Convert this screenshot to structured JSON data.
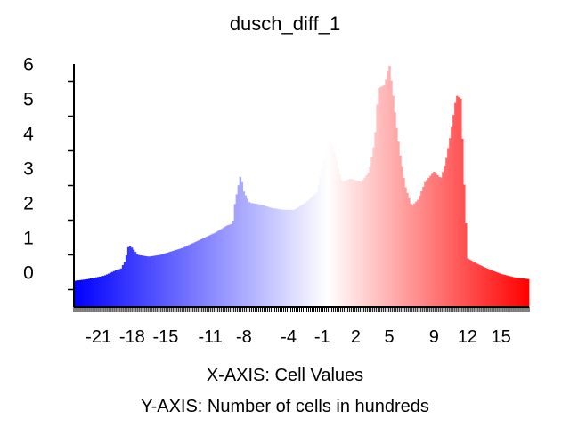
{
  "chart_data": {
    "type": "bar",
    "title": "dusch_diff_1",
    "xlabel": "X-AXIS: Cell Values",
    "ylabel": "Y-AXIS: Number of cells in hundreds",
    "x_ticks": [
      -21,
      -18,
      -15,
      -11,
      -8,
      -4,
      -1,
      2,
      5,
      9,
      12,
      15
    ],
    "y_ticks": [
      0,
      1,
      2,
      3,
      4,
      5,
      6
    ],
    "xlim": [
      -23.2,
      17.5
    ],
    "ylim": [
      -0.5,
      6.5
    ],
    "colors": {
      "low": "#0000ff",
      "mid": "#ffffff",
      "high": "#ff0000"
    },
    "grid": false,
    "legend": "none",
    "profile": [
      [
        -23.2,
        0.25
      ],
      [
        -22.0,
        0.3
      ],
      [
        -20.5,
        0.4
      ],
      [
        -19.5,
        0.55
      ],
      [
        -19.0,
        0.6
      ],
      [
        -18.6,
        0.85
      ],
      [
        -18.3,
        1.3
      ],
      [
        -18.0,
        1.2
      ],
      [
        -17.5,
        1.0
      ],
      [
        -16.5,
        0.95
      ],
      [
        -15.5,
        1.0
      ],
      [
        -14.5,
        1.1
      ],
      [
        -13.5,
        1.2
      ],
      [
        -12.5,
        1.35
      ],
      [
        -11.5,
        1.5
      ],
      [
        -10.5,
        1.65
      ],
      [
        -9.5,
        1.85
      ],
      [
        -9.0,
        1.9
      ],
      [
        -8.8,
        2.5
      ],
      [
        -8.5,
        3.0
      ],
      [
        -8.3,
        3.3
      ],
      [
        -8.0,
        2.8
      ],
      [
        -7.5,
        2.5
      ],
      [
        -6.5,
        2.45
      ],
      [
        -5.5,
        2.35
      ],
      [
        -4.5,
        2.3
      ],
      [
        -3.5,
        2.3
      ],
      [
        -2.5,
        2.5
      ],
      [
        -1.5,
        2.8
      ],
      [
        -1.0,
        3.5
      ],
      [
        -0.7,
        4.0
      ],
      [
        -0.3,
        4.3
      ],
      [
        0.0,
        4.1
      ],
      [
        0.4,
        3.5
      ],
      [
        0.8,
        3.1
      ],
      [
        1.5,
        3.2
      ],
      [
        2.5,
        3.1
      ],
      [
        3.2,
        3.4
      ],
      [
        3.7,
        4.3
      ],
      [
        4.0,
        5.8
      ],
      [
        4.6,
        5.9
      ],
      [
        5.0,
        6.5
      ],
      [
        5.3,
        5.7
      ],
      [
        5.6,
        4.8
      ],
      [
        6.0,
        3.8
      ],
      [
        6.4,
        3.0
      ],
      [
        7.0,
        2.4
      ],
      [
        7.6,
        2.6
      ],
      [
        8.2,
        3.1
      ],
      [
        9.0,
        3.4
      ],
      [
        9.6,
        3.2
      ],
      [
        10.0,
        3.6
      ],
      [
        10.5,
        4.5
      ],
      [
        11.0,
        5.6
      ],
      [
        11.4,
        5.5
      ],
      [
        11.7,
        3.0
      ],
      [
        12.0,
        0.9
      ],
      [
        12.8,
        0.75
      ],
      [
        13.8,
        0.6
      ],
      [
        15.0,
        0.45
      ],
      [
        16.2,
        0.35
      ],
      [
        17.5,
        0.3
      ]
    ]
  }
}
